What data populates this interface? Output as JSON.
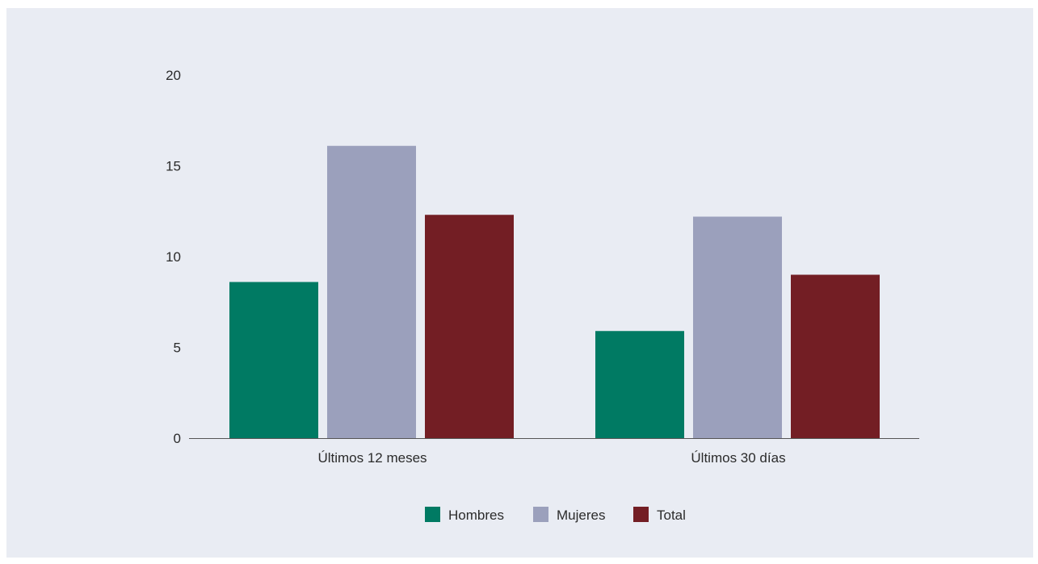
{
  "chart_data": {
    "type": "bar",
    "categories": [
      "Últimos 12 meses",
      "Últimos 30 días"
    ],
    "series": [
      {
        "name": "Hombres",
        "values": [
          8.6,
          5.9
        ],
        "color": "#007a63"
      },
      {
        "name": "Mujeres",
        "values": [
          16.1,
          12.2
        ],
        "color": "#9ba0bc"
      },
      {
        "name": "Total",
        "values": [
          12.3,
          9.0
        ],
        "color": "#731e24"
      }
    ],
    "yticks": [
      0,
      5,
      10,
      15,
      20
    ],
    "ylim": [
      0,
      20
    ],
    "grid": false,
    "legend_position": "bottom-center",
    "title": "",
    "xlabel": "",
    "ylabel": ""
  }
}
